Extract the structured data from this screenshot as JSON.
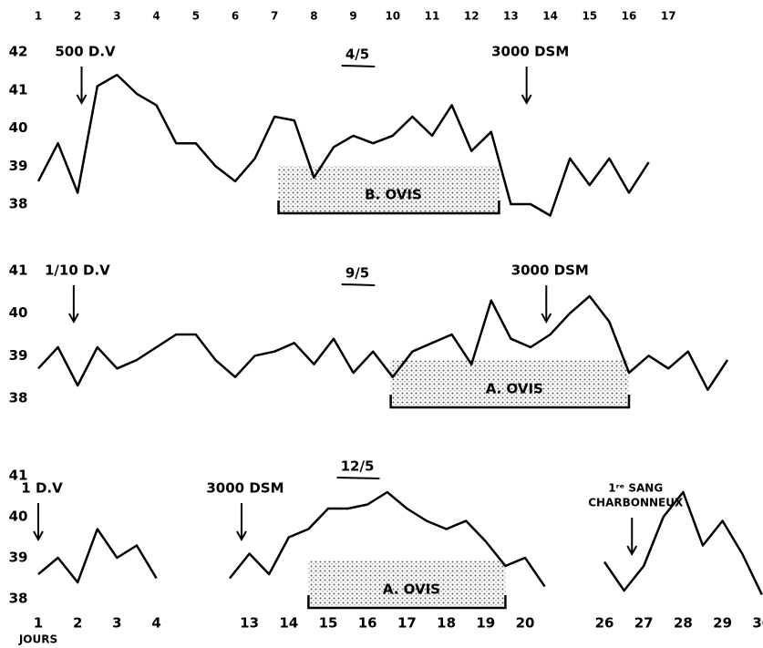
{
  "chart_data": [
    {
      "type": "line",
      "title": "4/5",
      "color": "#000000",
      "xticks": [
        1,
        2,
        3,
        4,
        5,
        6,
        7,
        8,
        9,
        10,
        11,
        12,
        13,
        14,
        15,
        16,
        17
      ],
      "ylim": [
        38,
        42
      ],
      "yticks": [
        38,
        39,
        40,
        41,
        42
      ],
      "series": [
        {
          "x": [
            1,
            1.5,
            2,
            2.5,
            3,
            3.5,
            4,
            4.5,
            5,
            5.5,
            6,
            6.5,
            7,
            7.5,
            8,
            8.5,
            9,
            9.5,
            10,
            10.5,
            11,
            11.5,
            12,
            12.5,
            13,
            13.5,
            14,
            14.5,
            15,
            15.5,
            16,
            16.5
          ],
          "values": [
            38.6,
            39.6,
            38.3,
            41.1,
            41.4,
            40.9,
            40.6,
            39.6,
            39.6,
            39.0,
            38.6,
            39.2,
            40.3,
            40.2,
            38.7,
            39.5,
            39.8,
            39.6,
            39.8,
            40.3,
            39.8,
            40.6,
            39.4,
            39.9,
            38.0,
            38.0,
            37.7,
            39.2,
            38.5,
            39.2,
            38.3,
            39.1
          ]
        }
      ],
      "annotations": [
        {
          "text": "500 D.V",
          "x": 2.1
        },
        {
          "text": "3000 DSM",
          "x": 13.4
        }
      ],
      "brackets": [
        {
          "text": "B. OVIS",
          "start": 7.1,
          "end": 12.7
        }
      ]
    },
    {
      "type": "line",
      "title": "9/5",
      "color": "#000000",
      "ylim": [
        38,
        41
      ],
      "yticks": [
        38,
        39,
        40,
        41
      ],
      "series": [
        {
          "x": [
            1,
            1.5,
            2,
            2.5,
            3,
            3.5,
            4,
            4.5,
            5,
            5.5,
            6,
            6.5,
            7,
            7.5,
            8,
            8.5,
            9,
            9.5,
            10,
            10.5,
            11,
            11.5,
            12,
            12.5,
            13,
            13.5,
            14,
            14.5,
            15,
            15.5,
            16,
            16.5,
            17,
            17.5,
            18,
            18.5
          ],
          "values": [
            38.7,
            39.2,
            38.3,
            39.2,
            38.7,
            38.9,
            39.2,
            39.5,
            39.5,
            38.9,
            38.5,
            39.0,
            39.1,
            39.3,
            38.8,
            39.4,
            38.6,
            39.1,
            38.5,
            39.1,
            39.3,
            39.5,
            38.8,
            40.3,
            39.4,
            39.2,
            39.5,
            40.0,
            40.4,
            39.8,
            38.6,
            39.0,
            38.7,
            39.1,
            38.2,
            38.9
          ]
        }
      ],
      "annotations": [
        {
          "text": "1/10 D.V",
          "x": 1.9
        },
        {
          "text": "3000 DSM",
          "x": 13.9
        }
      ],
      "brackets": [
        {
          "text": "A. OVIS",
          "start": 9.95,
          "end": 16
        }
      ]
    },
    {
      "type": "line",
      "title": "12/5",
      "color": "#000000",
      "xlabel": "JOURS",
      "xticks": [
        1,
        2,
        3,
        4,
        13,
        14,
        15,
        16,
        17,
        18,
        19,
        20,
        26,
        27,
        28,
        29,
        30
      ],
      "ylim": [
        38,
        41
      ],
      "yticks": [
        38,
        39,
        40,
        41
      ],
      "series": [
        {
          "x": [
            1,
            1.5,
            2,
            2.5,
            3,
            3.5,
            4
          ],
          "values": [
            38.6,
            39.0,
            38.4,
            39.7,
            39.0,
            39.3,
            38.5
          ]
        },
        {
          "x": [
            12.5,
            13,
            13.5,
            14,
            14.5,
            15,
            15.5,
            16,
            16.5,
            17,
            17.5,
            18,
            18.5,
            19,
            19.5,
            20,
            20.5
          ],
          "values": [
            38.5,
            39.1,
            38.6,
            39.5,
            39.7,
            40.2,
            40.2,
            40.3,
            40.6,
            40.2,
            39.9,
            39.7,
            39.9,
            39.4,
            38.8,
            39.0,
            38.3
          ]
        },
        {
          "x": [
            26,
            26.5,
            27,
            27.5,
            28,
            28.5,
            29,
            29.5,
            30
          ],
          "values": [
            38.9,
            38.2,
            38.8,
            40.0,
            40.6,
            39.3,
            39.9,
            39.1,
            38.1
          ]
        }
      ],
      "annotations": [
        {
          "text": "1 D.V",
          "x": 1
        },
        {
          "text": "3000 DSM",
          "x": 12.8
        },
        {
          "text": [
            "1ʳᵉ SANG",
            "CHARBONNEUX"
          ],
          "x": 26.7
        }
      ],
      "brackets": [
        {
          "text": "A. OVIS",
          "start": 14.5,
          "end": 19.5
        }
      ]
    }
  ]
}
